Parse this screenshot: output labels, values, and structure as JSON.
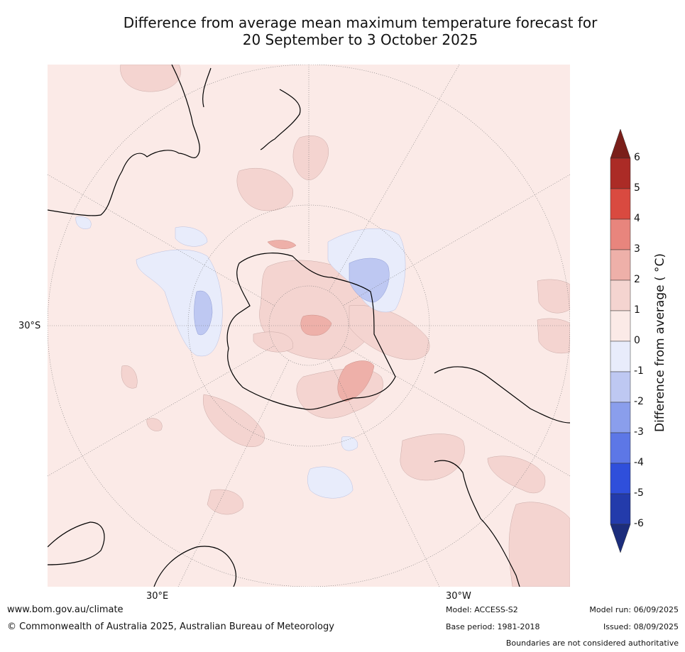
{
  "title": {
    "line1": "Difference from average mean maximum temperature forecast for",
    "line2": "20 September to 3 October 2025"
  },
  "map": {
    "projection": "south-polar-stereographic",
    "labels": {
      "lat_30s": "30°S",
      "lon_30e": "30°E",
      "lon_30w": "30°W"
    },
    "ocean_color": "#fbeae7",
    "land_outline_color": "#000000"
  },
  "colorbar": {
    "title": "Difference from average ( °C)",
    "ticks": [
      "6",
      "5",
      "4",
      "3",
      "2",
      "1",
      "0",
      "-1",
      "-2",
      "-3",
      "-4",
      "-5",
      "-6"
    ],
    "colors": {
      "gt6": "#7a1f1a",
      "5_6": "#ab2b26",
      "4_5": "#d94a40",
      "3_4": "#e8857d",
      "2_3": "#eeb0a9",
      "1_2": "#f4d4d0",
      "0_1": "#fbeae7",
      "m1_0": "#e8ecfb",
      "m2_m1": "#bec8f2",
      "m3_m2": "#8a9eec",
      "m4_m3": "#5d77e6",
      "m5_m4": "#2f4fdb",
      "m6_m5": "#233bab",
      "lt_m6": "#1c2d7c"
    }
  },
  "footer": {
    "website": "www.bom.gov.au/climate",
    "copyright": "© Commonwealth of Australia 2025, Australian Bureau of Meteorology",
    "model": "Model: ACCESS-S2",
    "base_period": "Base period: 1981-2018",
    "model_run": "Model run: 06/09/2025",
    "issued": "Issued: 08/09/2025",
    "disclaimer": "Boundaries are not considered authoritative"
  }
}
